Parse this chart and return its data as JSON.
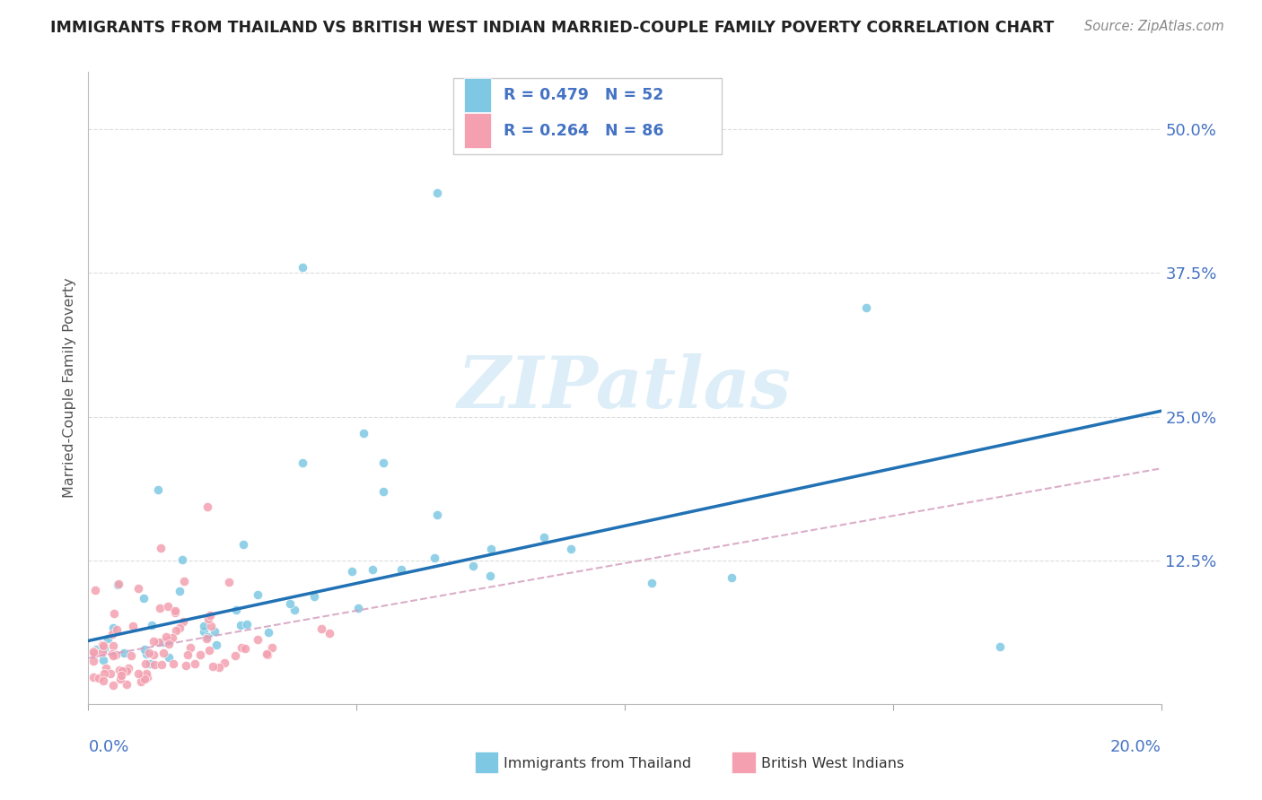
{
  "title": "IMMIGRANTS FROM THAILAND VS BRITISH WEST INDIAN MARRIED-COUPLE FAMILY POVERTY CORRELATION CHART",
  "source": "Source: ZipAtlas.com",
  "ylabel": "Married-Couple Family Poverty",
  "xlim": [
    0.0,
    0.2
  ],
  "ylim": [
    0.0,
    0.55
  ],
  "color_thailand": "#7ec8e3",
  "color_bwi": "#f4a0b0",
  "color_thailand_line": "#2171b5",
  "color_bwi_line": "#d4a0c0",
  "watermark_color": "#ddeef8",
  "title_color": "#222222",
  "source_color": "#888888",
  "axis_label_color": "#4472C4",
  "ylabel_color": "#555555",
  "grid_color": "#dddddd",
  "legend_text_color": "#4472C4",
  "scatter_edgecolor": "white",
  "thai_line_x": [
    0.0,
    0.2
  ],
  "thai_line_y": [
    0.055,
    0.255
  ],
  "bwi_line_x": [
    0.0,
    0.2
  ],
  "bwi_line_y": [
    0.04,
    0.205
  ]
}
